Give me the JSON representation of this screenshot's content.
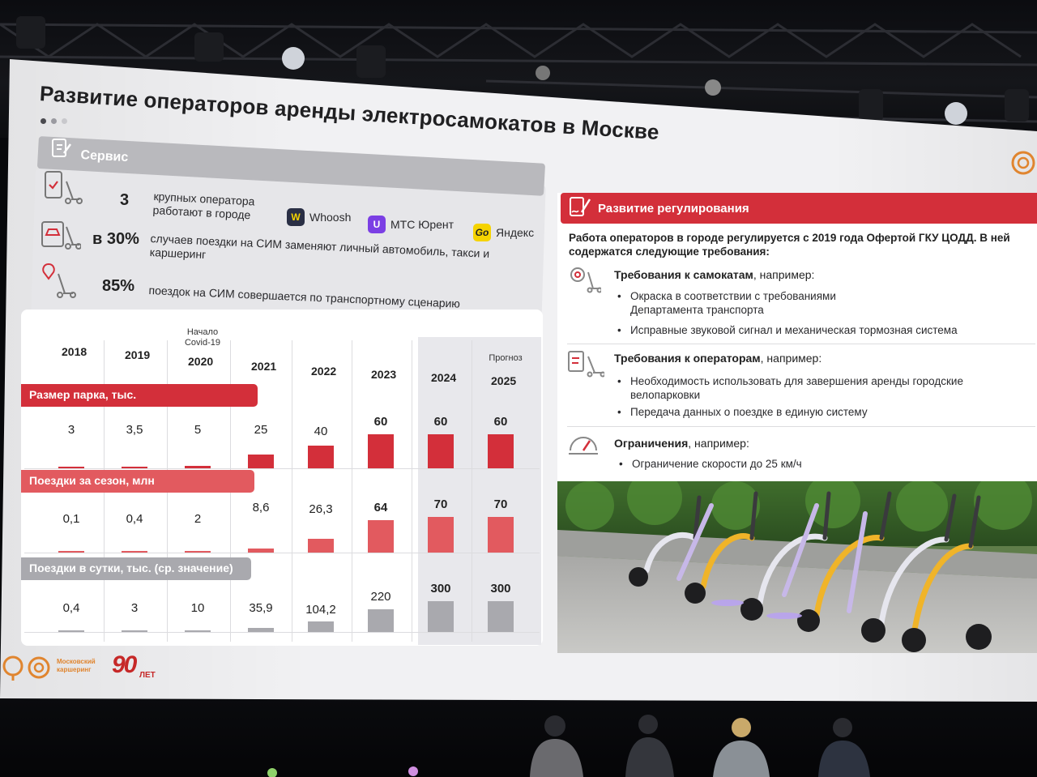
{
  "slide": {
    "title": "Развитие операторов аренды электросамокатов в Москве",
    "service": {
      "label": "Сервис",
      "stats": [
        {
          "num": "3",
          "text_line1": "крупных оператора",
          "text_line2": "работают в городе"
        },
        {
          "num": "в 30%",
          "text_line1": "случаев поездки на СИМ заменяют личный автомобиль, такси и",
          "text_line2": "каршеринг"
        },
        {
          "num": "85%",
          "text_line1": "поездок на СИМ совершается по транспортному сценарию",
          "text_line2": ""
        }
      ],
      "operators": [
        {
          "name": "Whoosh",
          "logo": "W",
          "color": "#2a2f45"
        },
        {
          "name": "МТС Юрент",
          "logo": "U",
          "color": "#7b3fe4"
        },
        {
          "name": "Яндекс",
          "logo": "Go",
          "color": "#f5d300"
        }
      ]
    },
    "chart": {
      "years": [
        "2018",
        "2019",
        "2020",
        "2021",
        "2022",
        "2023",
        "2024",
        "2025"
      ],
      "note_2020": "Начало Covid-19",
      "note_2025": "Прогноз",
      "sections": [
        {
          "label": "Размер парка, тыс.",
          "color": "#d32f3a",
          "values": [
            3,
            3.5,
            5,
            25,
            40,
            60,
            60,
            60
          ],
          "labels": [
            "3",
            "3,5",
            "5",
            "25",
            "40",
            "60",
            "60",
            "60"
          ]
        },
        {
          "label": "Поездки за сезон, млн",
          "color": "#e25a5f",
          "values": [
            0.1,
            0.4,
            2,
            8.6,
            26.3,
            64,
            70,
            70
          ],
          "labels": [
            "0,1",
            "0,4",
            "2",
            "8,6",
            "26,3",
            "64",
            "70",
            "70"
          ]
        },
        {
          "label": "Поездки в сутки, тыс. (ср. значение)",
          "color": "#a9a9ae",
          "values": [
            0.4,
            3,
            10,
            35.9,
            104.2,
            220,
            300,
            300
          ],
          "labels": [
            "0,4",
            "3",
            "10",
            "35,9",
            "104,2",
            "220",
            "300",
            "300"
          ]
        }
      ]
    },
    "regulation": {
      "label": "Развитие регулирования",
      "intro": "Работа операторов в городе регулируется с 2019 года Офертой ГКУ ЦОДД. В ней содержатся следующие требования:",
      "groups": [
        {
          "head_bold": "Требования к самокатам",
          "head_rest": ", например:",
          "bullets": [
            "Окраска в соответствии с требованиями Департамента транспорта",
            "Исправные звуковой сигнал и механическая тормозная система"
          ]
        },
        {
          "head_bold": "Требования к операторам",
          "head_rest": ", например:",
          "bullets": [
            "Необходимость использовать для завершения аренды городские велопарковки",
            "Передача данных о поездке  в единую систему"
          ]
        },
        {
          "head_bold": "Ограничения",
          "head_rest": ", например:",
          "bullets": [
            "Ограничение скорости до 25 км/ч"
          ]
        }
      ]
    },
    "footer": {
      "brand_line1": "Московский",
      "brand_line2": "каршеринг",
      "anniversary_num": "90",
      "anniversary_word": "ЛЕТ"
    }
  },
  "colors": {
    "accent": "#d32f3a",
    "accent_light": "#e25a5f",
    "grey": "#a9a9ae",
    "brand_orange": "#e0852f"
  }
}
